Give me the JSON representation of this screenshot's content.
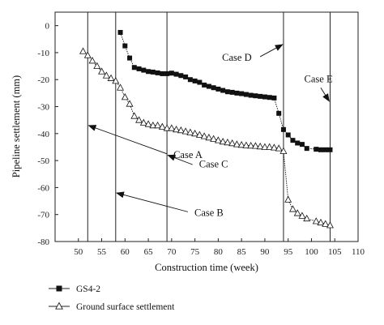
{
  "chart_data": {
    "type": "line",
    "xlabel": "Construction time (week)",
    "ylabel": "Pipeline settlement (mm)",
    "xlim": [
      45,
      110
    ],
    "ylim": [
      -80,
      5
    ],
    "xticks": [
      50,
      55,
      60,
      65,
      70,
      75,
      80,
      85,
      90,
      95,
      100,
      105,
      110
    ],
    "yticks": [
      0,
      -10,
      -20,
      -30,
      -40,
      -50,
      -60,
      -70,
      -80
    ],
    "grid": false,
    "legend_position": "bottom-left",
    "series": [
      {
        "name": "GS4-2",
        "marker": "filled-square",
        "color": "#111111",
        "x": [
          59,
          60,
          61,
          62,
          63,
          64,
          65,
          66,
          67,
          68,
          69,
          70,
          71,
          72,
          73,
          74,
          75,
          76,
          77,
          78,
          79,
          80,
          81,
          82,
          83,
          84,
          85,
          86,
          87,
          88,
          89,
          90,
          91,
          92,
          93,
          94,
          95,
          96,
          97,
          98,
          99,
          101,
          102,
          103,
          104
        ],
        "y": [
          -2.5,
          -7.5,
          -12,
          -15.5,
          -16,
          -16.5,
          -17,
          -17.2,
          -17.5,
          -17.8,
          -17.8,
          -17.6,
          -18,
          -18.5,
          -19,
          -20,
          -20.5,
          -21,
          -22,
          -22.5,
          -23,
          -23.5,
          -24,
          -24.5,
          -24.7,
          -25,
          -25.2,
          -25.5,
          -25.8,
          -26,
          -26.2,
          -26.4,
          -26.6,
          -26.8,
          -32.5,
          -38.5,
          -40.5,
          -42.5,
          -43.5,
          -44,
          -45.5,
          -45.8,
          -46,
          -46,
          -46
        ]
      },
      {
        "name": "Ground surface settlement",
        "marker": "open-triangle",
        "color": "#111111",
        "x": [
          51,
          52,
          53,
          54,
          55,
          56,
          57,
          58,
          59,
          60,
          61,
          62,
          63,
          64,
          65,
          66,
          67,
          68,
          69,
          70,
          71,
          72,
          73,
          74,
          75,
          76,
          77,
          78,
          79,
          80,
          81,
          82,
          83,
          84,
          85,
          86,
          87,
          88,
          89,
          90,
          91,
          92,
          93,
          94,
          95,
          96,
          97,
          98,
          99,
          101,
          102,
          103,
          104
        ],
        "y": [
          -9.5,
          -11,
          -13,
          -15,
          -17,
          -18.5,
          -19.5,
          -20.5,
          -23,
          -26.5,
          -29,
          -33.5,
          -35,
          -36,
          -36.5,
          -37,
          -37,
          -37.5,
          -38,
          -38,
          -38.5,
          -38.8,
          -39.2,
          -39.6,
          -40,
          -40.5,
          -41,
          -41.5,
          -42,
          -42.5,
          -43,
          -43.3,
          -43.6,
          -44,
          -44.2,
          -44.4,
          -44.5,
          -44.6,
          -44.8,
          -45,
          -45,
          -45.2,
          -45.5,
          -46.5,
          -64.5,
          -68,
          -69.5,
          -70.5,
          -71.5,
          -72.5,
          -73,
          -73.5,
          -74
        ]
      }
    ],
    "vertical_lines_x": [
      52,
      58,
      69,
      94,
      104
    ],
    "annotations": [
      {
        "text": "Case A",
        "text_x": 73.5,
        "text_y": -49,
        "arrow_to_x": 52.2,
        "arrow_to_y": -37,
        "arrow_from_x": 69,
        "arrow_from_y": -47.5
      },
      {
        "text": "Case B",
        "text_x": 78,
        "text_y": -70.5,
        "arrow_to_x": 58.2,
        "arrow_to_y": -62,
        "arrow_from_x": 73.5,
        "arrow_from_y": -69
      },
      {
        "text": "Case C",
        "text_x": 79,
        "text_y": -52.5,
        "arrow_to_x": 69.2,
        "arrow_to_y": -48,
        "arrow_from_x": 74.5,
        "arrow_from_y": -51.5
      },
      {
        "text": "Case D",
        "text_x": 84,
        "text_y": -13,
        "arrow_to_x": 93.8,
        "arrow_to_y": -7,
        "arrow_from_x": 89,
        "arrow_from_y": -11.5
      },
      {
        "text": "Case E",
        "text_x": 101.5,
        "text_y": -21,
        "arrow_to_x": 103.8,
        "arrow_to_y": -28,
        "arrow_from_x": 102,
        "arrow_from_y": -23
      }
    ]
  }
}
